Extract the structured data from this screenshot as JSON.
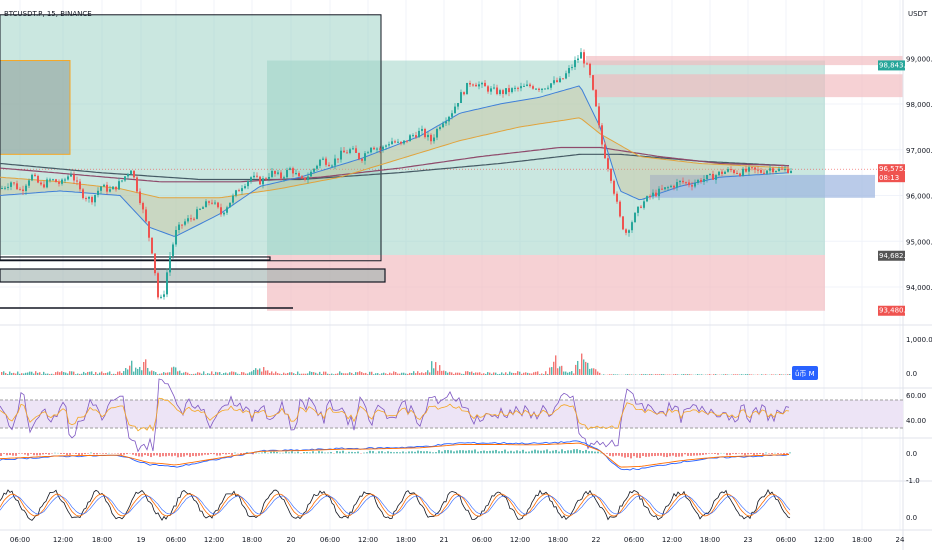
{
  "header": {
    "symbol": "BTCUSDT.P, 15, BINANCE",
    "currency": "USDT"
  },
  "colors": {
    "up": "#26a69a",
    "down": "#ef5350",
    "teal_zone": "#9fd4c7",
    "red_zone": "#f1b8bd",
    "blue_zone": "#9db5e0"
  },
  "price_axis": {
    "ticks": [
      {
        "v": 98000,
        "t": "98,000.0"
      },
      {
        "v": 97000,
        "t": "97,000.0"
      },
      {
        "v": 96000,
        "t": "96,000.0"
      },
      {
        "v": 95000,
        "t": "95,000.0"
      },
      {
        "v": 94000,
        "t": "94,000.0"
      }
    ],
    "partial_top_tick": {
      "v": 99000,
      "t": "99,000.0"
    },
    "tags": [
      {
        "v": 98843.2,
        "t": "98,843.2",
        "color": "#26a69a"
      },
      {
        "v": 96575.2,
        "t": "96,575.2",
        "color": "#ef5350",
        "sub": "08:13"
      },
      {
        "v": 94682.8,
        "t": "94,682.8",
        "color": "#555555"
      },
      {
        "v": 93480.9,
        "t": "93,480.9",
        "color": "#ef5350"
      }
    ]
  },
  "volume_axis": {
    "ticks": [
      "1,000.0",
      "0.0"
    ],
    "tag": "ǘ币 M"
  },
  "rsi_axis": {
    "ticks": [
      "60.00",
      "40.00"
    ]
  },
  "macd_axis": {
    "ticks": [
      "0.0",
      "-1.0"
    ]
  },
  "stoch_axis": {
    "ticks": [
      "0.0"
    ]
  },
  "time_axis": [
    {
      "x": 20,
      "t": "06:00"
    },
    {
      "x": 63,
      "t": "12:00"
    },
    {
      "x": 102,
      "t": "18:00"
    },
    {
      "x": 141,
      "t": "19"
    },
    {
      "x": 176,
      "t": "06:00"
    },
    {
      "x": 214,
      "t": "12:00"
    },
    {
      "x": 252,
      "t": "18:00"
    },
    {
      "x": 291,
      "t": "20"
    },
    {
      "x": 330,
      "t": "06:00"
    },
    {
      "x": 368,
      "t": "12:00"
    },
    {
      "x": 406,
      "t": "18:00"
    },
    {
      "x": 444,
      "t": "21"
    },
    {
      "x": 482,
      "t": "06:00"
    },
    {
      "x": 520,
      "t": "12:00"
    },
    {
      "x": 558,
      "t": "18:00"
    },
    {
      "x": 596,
      "t": "22"
    },
    {
      "x": 634,
      "t": "06:00"
    },
    {
      "x": 672,
      "t": "12:00"
    },
    {
      "x": 710,
      "t": "18:00"
    },
    {
      "x": 748,
      "t": "23"
    },
    {
      "x": 786,
      "t": "06:00"
    },
    {
      "x": 824,
      "t": "12:00"
    },
    {
      "x": 862,
      "t": "18:00"
    },
    {
      "x": 900,
      "t": "24"
    }
  ],
  "chart_data": {
    "type": "candlestick",
    "title": "BTCUSDT.P, 15, BINANCE",
    "ylim": [
      93300,
      99300
    ],
    "close_path": [
      [
        0,
        96150
      ],
      [
        10,
        96300
      ],
      [
        20,
        96100
      ],
      [
        30,
        96450
      ],
      [
        40,
        96200
      ],
      [
        50,
        96350
      ],
      [
        60,
        96250
      ],
      [
        70,
        96500
      ],
      [
        80,
        96050
      ],
      [
        90,
        95900
      ],
      [
        100,
        96200
      ],
      [
        110,
        96100
      ],
      [
        120,
        96300
      ],
      [
        130,
        96600
      ],
      [
        138,
        96000
      ],
      [
        145,
        95400
      ],
      [
        152,
        94700
      ],
      [
        158,
        93600
      ],
      [
        163,
        93900
      ],
      [
        168,
        94600
      ],
      [
        175,
        95200
      ],
      [
        182,
        95400
      ],
      [
        190,
        95500
      ],
      [
        200,
        95700
      ],
      [
        210,
        95900
      ],
      [
        220,
        95600
      ],
      [
        230,
        95900
      ],
      [
        240,
        96200
      ],
      [
        250,
        96400
      ],
      [
        260,
        96300
      ],
      [
        270,
        96500
      ],
      [
        280,
        96400
      ],
      [
        290,
        96600
      ],
      [
        300,
        96300
      ],
      [
        310,
        96500
      ],
      [
        320,
        96800
      ],
      [
        330,
        96700
      ],
      [
        340,
        96900
      ],
      [
        350,
        97000
      ],
      [
        360,
        96800
      ],
      [
        370,
        97100
      ],
      [
        380,
        97000
      ],
      [
        390,
        97200
      ],
      [
        400,
        97100
      ],
      [
        410,
        97300
      ],
      [
        420,
        97400
      ],
      [
        430,
        97200
      ],
      [
        440,
        97600
      ],
      [
        450,
        97800
      ],
      [
        460,
        98200
      ],
      [
        470,
        98500
      ],
      [
        480,
        98400
      ],
      [
        490,
        98300
      ],
      [
        500,
        98250
      ],
      [
        510,
        98300
      ],
      [
        520,
        98350
      ],
      [
        530,
        98400
      ],
      [
        540,
        98350
      ],
      [
        550,
        98450
      ],
      [
        560,
        98500
      ],
      [
        570,
        98800
      ],
      [
        580,
        99100
      ],
      [
        588,
        98700
      ],
      [
        595,
        97900
      ],
      [
        600,
        97200
      ],
      [
        605,
        96800
      ],
      [
        610,
        96400
      ],
      [
        615,
        95900
      ],
      [
        620,
        95400
      ],
      [
        625,
        95200
      ],
      [
        630,
        95400
      ],
      [
        640,
        95800
      ],
      [
        650,
        96000
      ],
      [
        660,
        96100
      ],
      [
        670,
        96200
      ],
      [
        680,
        96300
      ],
      [
        690,
        96250
      ],
      [
        700,
        96350
      ],
      [
        710,
        96400
      ],
      [
        720,
        96500
      ],
      [
        730,
        96550
      ],
      [
        740,
        96500
      ],
      [
        750,
        96550
      ],
      [
        760,
        96520
      ],
      [
        770,
        96600
      ],
      [
        780,
        96550
      ],
      [
        790,
        96575
      ]
    ],
    "ema_fast": [
      [
        0,
        96000
      ],
      [
        60,
        96100
      ],
      [
        120,
        96000
      ],
      [
        150,
        95300
      ],
      [
        175,
        95100
      ],
      [
        220,
        95600
      ],
      [
        260,
        96200
      ],
      [
        300,
        96400
      ],
      [
        360,
        96800
      ],
      [
        420,
        97300
      ],
      [
        460,
        97800
      ],
      [
        500,
        98000
      ],
      [
        540,
        98150
      ],
      [
        580,
        98400
      ],
      [
        600,
        97500
      ],
      [
        620,
        96100
      ],
      [
        640,
        95900
      ],
      [
        680,
        96200
      ],
      [
        720,
        96400
      ],
      [
        790,
        96500
      ]
    ],
    "ema_slow": [
      [
        0,
        96400
      ],
      [
        60,
        96300
      ],
      [
        120,
        96150
      ],
      [
        160,
        95950
      ],
      [
        220,
        95950
      ],
      [
        280,
        96150
      ],
      [
        340,
        96400
      ],
      [
        400,
        96800
      ],
      [
        460,
        97200
      ],
      [
        520,
        97500
      ],
      [
        580,
        97700
      ],
      [
        600,
        97350
      ],
      [
        640,
        96850
      ],
      [
        700,
        96700
      ],
      [
        790,
        96600
      ]
    ],
    "ma_long": [
      [
        0,
        96600
      ],
      [
        80,
        96450
      ],
      [
        160,
        96300
      ],
      [
        240,
        96300
      ],
      [
        320,
        96400
      ],
      [
        400,
        96600
      ],
      [
        480,
        96850
      ],
      [
        560,
        97050
      ],
      [
        600,
        97050
      ],
      [
        660,
        96850
      ],
      [
        720,
        96700
      ],
      [
        790,
        96650
      ]
    ],
    "ma_longest": [
      [
        0,
        96700
      ],
      [
        100,
        96500
      ],
      [
        200,
        96350
      ],
      [
        300,
        96350
      ],
      [
        400,
        96500
      ],
      [
        500,
        96700
      ],
      [
        580,
        96900
      ],
      [
        620,
        96900
      ],
      [
        700,
        96750
      ],
      [
        790,
        96650
      ]
    ],
    "zones": [
      {
        "type": "teal",
        "x1": 0,
        "x2": 381,
        "y1": 99950,
        "y2": 94700
      },
      {
        "type": "teal",
        "x1": 267,
        "x2": 825,
        "y1": 98950,
        "y2": 94700
      },
      {
        "type": "red",
        "x1": 267,
        "x2": 825,
        "y1": 94700,
        "y2": 93480
      },
      {
        "type": "red",
        "x1": 586,
        "x2": 903,
        "y1": 99050,
        "y2": 98850
      },
      {
        "type": "red",
        "x1": 594,
        "x2": 903,
        "y1": 98650,
        "y2": 98150
      },
      {
        "type": "orange",
        "x1": 0,
        "x2": 70,
        "y1": 98950,
        "y2": 96900
      },
      {
        "type": "blue",
        "x1": 650,
        "x2": 875,
        "y1": 96450,
        "y2": 95950
      }
    ],
    "levels": [
      94682.8,
      93480.9
    ],
    "volume": {
      "max": 1000,
      "spikes": [
        [
          130,
          380
        ],
        [
          145,
          450
        ],
        [
          170,
          320
        ],
        [
          260,
          250
        ],
        [
          435,
          620
        ],
        [
          555,
          470
        ],
        [
          580,
          580
        ],
        [
          588,
          520
        ]
      ]
    },
    "rsi": {
      "upper": 60,
      "lower": 40
    }
  }
}
